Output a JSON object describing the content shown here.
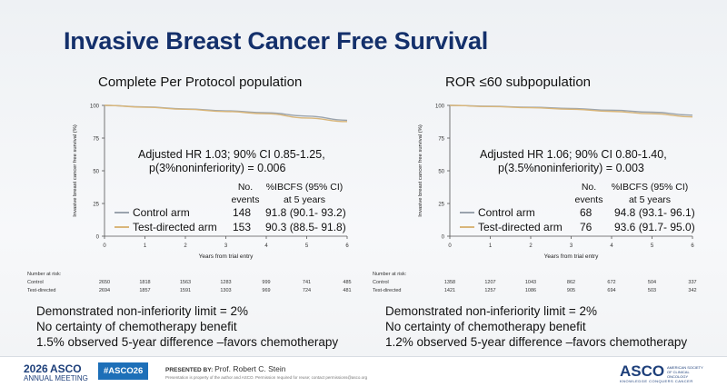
{
  "slide_title": "Invasive Breast Cancer Free Survival",
  "chart_data": [
    {
      "type": "line",
      "title": "Complete Per Protocol population",
      "xlabel": "Years from trial entry",
      "ylabel": "Invasive breast cancer free survival (%)",
      "xlim": [
        0,
        6
      ],
      "ylim": [
        0,
        100
      ],
      "xticks": [
        "0",
        "1",
        "2",
        "3",
        "4",
        "5",
        "6"
      ],
      "yticks": [
        "0",
        "25",
        "50",
        "75",
        "100"
      ],
      "series": [
        {
          "name": "Control arm",
          "color": "#9aa3ad",
          "x": [
            0,
            1,
            2,
            3,
            4,
            5,
            6
          ],
          "y": [
            100,
            98.8,
            97.3,
            95.8,
            94.4,
            91.8,
            88.6
          ]
        },
        {
          "name": "Test-directed arm",
          "color": "#d9b67a",
          "x": [
            0,
            1,
            2,
            3,
            4,
            5,
            6
          ],
          "y": [
            100,
            98.6,
            97.0,
            95.3,
            93.6,
            90.3,
            87.6
          ]
        }
      ],
      "annotation": {
        "line1": "Adjusted HR 1.03; 90% CI 0.85-1.25,",
        "line2": "p(3%noninferiority) = 0.006"
      },
      "table": {
        "col1": [
          "No.",
          "events"
        ],
        "col2": [
          "%IBCFS (95% CI)",
          "at 5 years"
        ],
        "rows": [
          {
            "arm": "Control arm",
            "events": "148",
            "ibcfs": "91.8 (90.1- 93.2)"
          },
          {
            "arm": "Test-directed arm",
            "events": "153",
            "ibcfs": "90.3 (88.5- 91.8)"
          }
        ]
      },
      "at_risk": {
        "header": "Number at risk:",
        "rows": [
          {
            "arm": "Control",
            "values": [
              "2650",
              "1818",
              "1563",
              "1283",
              "999",
              "741",
              "485"
            ]
          },
          {
            "arm": "Test-directed",
            "values": [
              "2694",
              "1857",
              "1591",
              "1303",
              "969",
              "724",
              "481"
            ]
          }
        ]
      }
    },
    {
      "type": "line",
      "title": "ROR ≤60 subpopulation",
      "xlabel": "Years from trial entry",
      "ylabel": "Invasive breast cancer free survival (%)",
      "xlim": [
        0,
        6
      ],
      "ylim": [
        0,
        100
      ],
      "xticks": [
        "0",
        "1",
        "2",
        "3",
        "4",
        "5",
        "6"
      ],
      "yticks": [
        "0",
        "25",
        "50",
        "75",
        "100"
      ],
      "series": [
        {
          "name": "Control arm",
          "color": "#9aa3ad",
          "x": [
            0,
            1,
            2,
            3,
            4,
            5,
            6
          ],
          "y": [
            100,
            99.3,
            98.6,
            97.6,
            96.3,
            94.8,
            92.5
          ]
        },
        {
          "name": "Test-directed arm",
          "color": "#d9b67a",
          "x": [
            0,
            1,
            2,
            3,
            4,
            5,
            6
          ],
          "y": [
            100,
            99.1,
            98.2,
            97.0,
            95.4,
            93.6,
            91.2
          ]
        }
      ],
      "annotation": {
        "line1": "Adjusted HR 1.06; 90% CI 0.80-1.40,",
        "line2": "p(3.5%noninferiority) = 0.003"
      },
      "table": {
        "col1": [
          "No.",
          "events"
        ],
        "col2": [
          "%IBCFS (95% CI)",
          "at 5 years"
        ],
        "rows": [
          {
            "arm": "Control arm",
            "events": "68",
            "ibcfs": "94.8 (93.1- 96.1)"
          },
          {
            "arm": "Test-directed arm",
            "events": "76",
            "ibcfs": "93.6 (91.7- 95.0)"
          }
        ]
      },
      "at_risk": {
        "header": "Number at risk:",
        "rows": [
          {
            "arm": "Control",
            "values": [
              "1358",
              "1207",
              "1043",
              "862",
              "672",
              "504",
              "337"
            ]
          },
          {
            "arm": "Test-directed",
            "values": [
              "1421",
              "1257",
              "1086",
              "905",
              "694",
              "503",
              "342"
            ]
          }
        ]
      }
    }
  ],
  "conclusions_left": [
    "Demonstrated non-inferiority limit = 2%",
    "No certainty of chemotherapy benefit",
    "1.5% observed 5-year difference –favors chemotherapy"
  ],
  "conclusions_right": [
    "Demonstrated non-inferiority limit = 2%",
    "No certainty of chemotherapy benefit",
    "1.2% observed 5-year difference –favors chemotherapy"
  ],
  "footer": {
    "meeting_year": "2026",
    "meeting_name": "ASCO",
    "meeting_sub": "ANNUAL MEETING",
    "hashtag": "#ASCO26",
    "presented_by": "PRESENTED BY:",
    "presenter": "Prof. Robert C. Stein",
    "disclaimer": "Presentation is property of the author and ASCO. Permission required for reuse; contact permissions@asco.org",
    "org": "ASCO",
    "org_full": "AMERICAN SOCIETY OF CLINICAL ONCOLOGY",
    "tagline": "KNOWLEDGE CONQUERS CANCER"
  }
}
